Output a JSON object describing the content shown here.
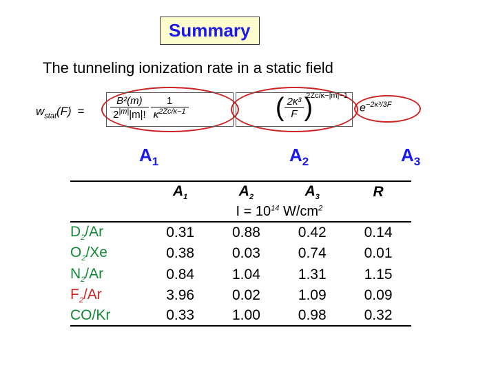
{
  "title": "Summary",
  "description": "The tunneling ionization rate in a static field",
  "formula": {
    "lhs": "w",
    "lhs_sub": "stat",
    "lhs_arg": "(F)",
    "t1_num": "B²(m)",
    "t1_den_a": "2",
    "t1_den_a_exp": "|m|",
    "t1_den_b": "|m|!",
    "t1_frac2_num": "1",
    "t1_frac2_den_a": "κ",
    "t1_frac2_den_exp": "2Zc/κ−1",
    "t2_num": "2κ³",
    "t2_den": "F",
    "t2_exp": "2Zc/κ−|m|−1",
    "t3_base": "e",
    "t3_exp": "−2κ³/3F"
  },
  "labels": {
    "a1": "A",
    "a1_sub": "1",
    "a2": "A",
    "a2_sub": "2",
    "a3": "A",
    "a3_sub": "3"
  },
  "table": {
    "headers": [
      "A",
      "1",
      "A",
      "2",
      "A",
      "3",
      "R"
    ],
    "intensity_prefix": "I = 10",
    "intensity_exp": "14",
    "intensity_unit": " W/cm",
    "intensity_unit_exp": "2",
    "rows": [
      {
        "label": "D",
        "lsub": "2",
        "sep": "/Ar",
        "color": "green",
        "vals": [
          "0.31",
          "0.88",
          "0.42",
          "0.14"
        ]
      },
      {
        "label": "O",
        "lsub": "2",
        "sep": "/Xe",
        "color": "green",
        "vals": [
          "0.38",
          "0.03",
          "0.74",
          "0.01"
        ]
      },
      {
        "label": "N",
        "lsub": "2",
        "sep": "/Ar",
        "color": "green",
        "vals": [
          "0.84",
          "1.04",
          "1.31",
          "1.15"
        ]
      },
      {
        "label": "F",
        "lsub": "2",
        "sep": "/Ar",
        "color": "red",
        "vals": [
          "3.96",
          "0.02",
          "1.09",
          "0.09"
        ]
      },
      {
        "label": "CO",
        "lsub": "",
        "sep": "/Kr",
        "color": "green",
        "vals": [
          "0.33",
          "1.00",
          "0.98",
          "0.32"
        ]
      }
    ]
  },
  "colors": {
    "title_fg": "#1a1aee",
    "title_bg": "#fdfccc",
    "oval": "#cc2222",
    "green": "#118833",
    "red": "#cc2222",
    "text": "#000000",
    "bg": "#ffffff"
  }
}
